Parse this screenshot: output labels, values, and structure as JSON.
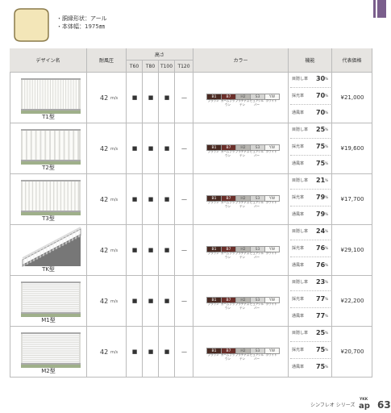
{
  "header": {
    "specs": [
      "・胴縁形状：アール",
      "・本体幅：1975㎜"
    ]
  },
  "table": {
    "columns": {
      "design": "デザイン名",
      "wind": "耐風圧",
      "height": "高さ",
      "heights": [
        "T60",
        "T80",
        "T100",
        "T120"
      ],
      "color": "カラー",
      "function": "機能",
      "price": "代表価格"
    },
    "colors": [
      {
        "code": "B1",
        "name": "ブラウン",
        "color": "#4a2a22"
      },
      {
        "code": "B7",
        "name": "カームブラウン",
        "color": "#6b2f2a"
      },
      {
        "code": "H2",
        "name": "プラチナステン",
        "color": "#b7b5b0"
      },
      {
        "code": "S3",
        "name": "ピュアシルバー",
        "color": "#d4d4d2"
      },
      {
        "code": "YW",
        "name": "ホワイト",
        "color": "#f7f7f5"
      }
    ],
    "rows": [
      {
        "name": "T1型",
        "wind": {
          "value": "42",
          "unit": "m/s"
        },
        "heights": [
          "■",
          "■",
          "■",
          "—"
        ],
        "functions": [
          {
            "label": "目隠し率",
            "value": "30",
            "unit": "%"
          },
          {
            "label": "採光率",
            "value": "70",
            "unit": "%"
          },
          {
            "label": "通風率",
            "value": "70",
            "unit": "%"
          }
        ],
        "price": "¥21,000"
      },
      {
        "name": "T2型",
        "wind": {
          "value": "42",
          "unit": "m/s"
        },
        "heights": [
          "■",
          "■",
          "■",
          "—"
        ],
        "functions": [
          {
            "label": "目隠し率",
            "value": "25",
            "unit": "%"
          },
          {
            "label": "採光率",
            "value": "75",
            "unit": "%"
          },
          {
            "label": "通風率",
            "value": "75",
            "unit": "%"
          }
        ],
        "price": "¥19,600"
      },
      {
        "name": "T3型",
        "wind": {
          "value": "42",
          "unit": "m/s"
        },
        "heights": [
          "■",
          "■",
          "■",
          "—"
        ],
        "functions": [
          {
            "label": "目隠し率",
            "value": "21",
            "unit": "%"
          },
          {
            "label": "採光率",
            "value": "79",
            "unit": "%"
          },
          {
            "label": "通風率",
            "value": "79",
            "unit": "%"
          }
        ],
        "price": "¥17,700"
      },
      {
        "name": "TK型",
        "wind": {
          "value": "42",
          "unit": "m/s"
        },
        "heights": [
          "■",
          "■",
          "■",
          "—"
        ],
        "functions": [
          {
            "label": "目隠し率",
            "value": "24",
            "unit": "%"
          },
          {
            "label": "採光率",
            "value": "76",
            "unit": "%"
          },
          {
            "label": "通風率",
            "value": "76",
            "unit": "%"
          }
        ],
        "price": "¥29,100"
      },
      {
        "name": "M1型",
        "wind": {
          "value": "42",
          "unit": "m/s"
        },
        "heights": [
          "■",
          "■",
          "■",
          "—"
        ],
        "functions": [
          {
            "label": "目隠し率",
            "value": "23",
            "unit": "%"
          },
          {
            "label": "採光率",
            "value": "77",
            "unit": "%"
          },
          {
            "label": "通風率",
            "value": "77",
            "unit": "%"
          }
        ],
        "price": "¥22,200"
      },
      {
        "name": "M2型",
        "wind": {
          "value": "42",
          "unit": "m/s"
        },
        "heights": [
          "■",
          "■",
          "■",
          "—"
        ],
        "functions": [
          {
            "label": "目隠し率",
            "value": "25",
            "unit": "%"
          },
          {
            "label": "採光率",
            "value": "75",
            "unit": "%"
          },
          {
            "label": "通風率",
            "value": "75",
            "unit": "%"
          }
        ],
        "price": "¥20,700"
      }
    ]
  },
  "footer": {
    "series": "シンフレオ シリーズ",
    "brand": "YKK",
    "brand_mark": "ap",
    "page": "63"
  }
}
